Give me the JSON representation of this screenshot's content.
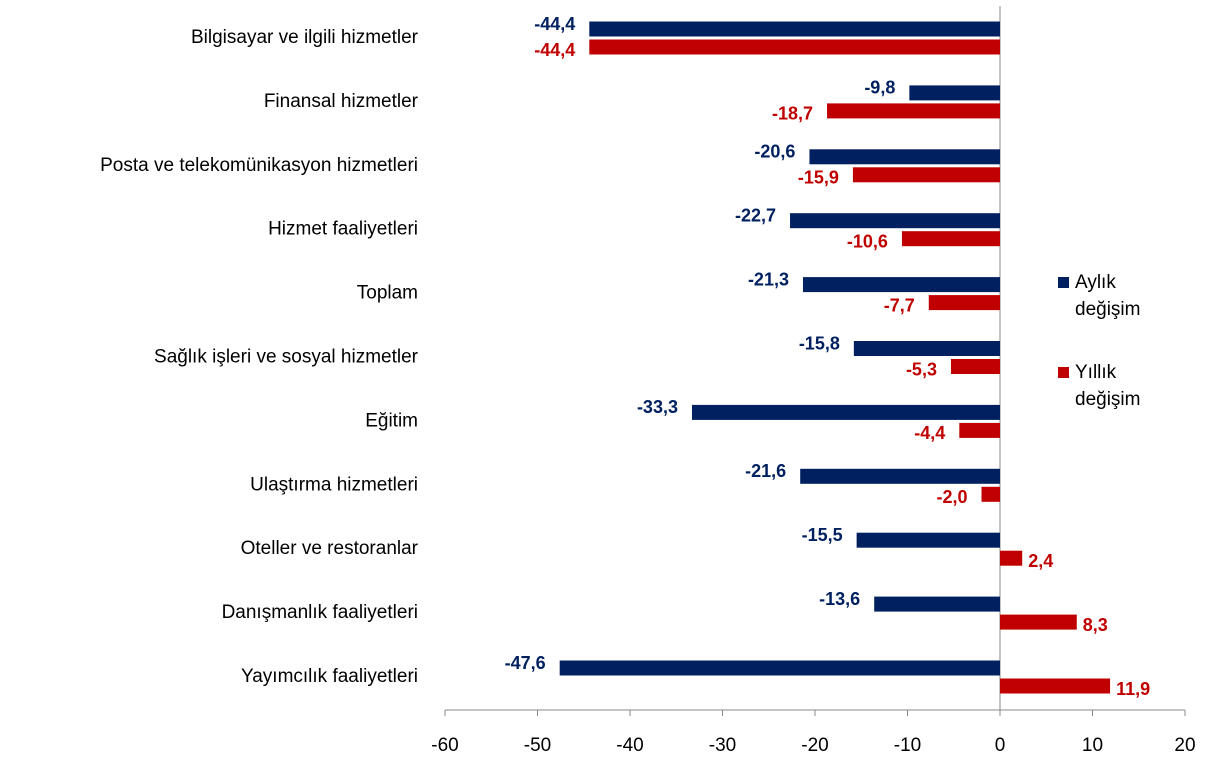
{
  "chart_data": {
    "type": "barh",
    "categories": [
      "Bilgisayar ve ilgili hizmetler",
      "Finansal hizmetler",
      "Posta ve telekomünikasyon hizmetleri",
      "Hizmet faaliyetleri",
      "Toplam",
      "Sağlık işleri ve sosyal hizmetler",
      "Eğitim",
      "Ulaştırma hizmetleri",
      "Oteller ve restoranlar",
      "Danışmanlık faaliyetleri",
      "Yayımcılık faaliyetleri"
    ],
    "series": [
      {
        "name": "Aylık değişim",
        "color": "#002060",
        "values": [
          -44.4,
          -9.8,
          -20.6,
          -22.7,
          -21.3,
          -15.8,
          -33.3,
          -21.6,
          -15.5,
          -13.6,
          -47.6
        ],
        "value_labels": [
          "-44,4",
          "-9,8",
          "-20,6",
          "-22,7",
          "-21,3",
          "-15,8",
          "-33,3",
          "-21,6",
          "-15,5",
          "-13,6",
          "-47,6"
        ]
      },
      {
        "name": "Yıllık değişim",
        "color": "#c00000",
        "values": [
          -44.4,
          -18.7,
          -15.9,
          -10.6,
          -7.7,
          -5.3,
          -4.4,
          -2.0,
          2.4,
          8.3,
          11.9
        ],
        "value_labels": [
          "-44,4",
          "-18,7",
          "-15,9",
          "-10,6",
          "-7,7",
          "-5,3",
          "-4,4",
          "-2,0",
          "2,4",
          "8,3",
          "11,9"
        ]
      }
    ],
    "xlim": [
      -60,
      20
    ],
    "xticks": [
      -60,
      -50,
      -40,
      -30,
      -20,
      -10,
      0,
      10,
      20
    ],
    "legend": "right"
  }
}
